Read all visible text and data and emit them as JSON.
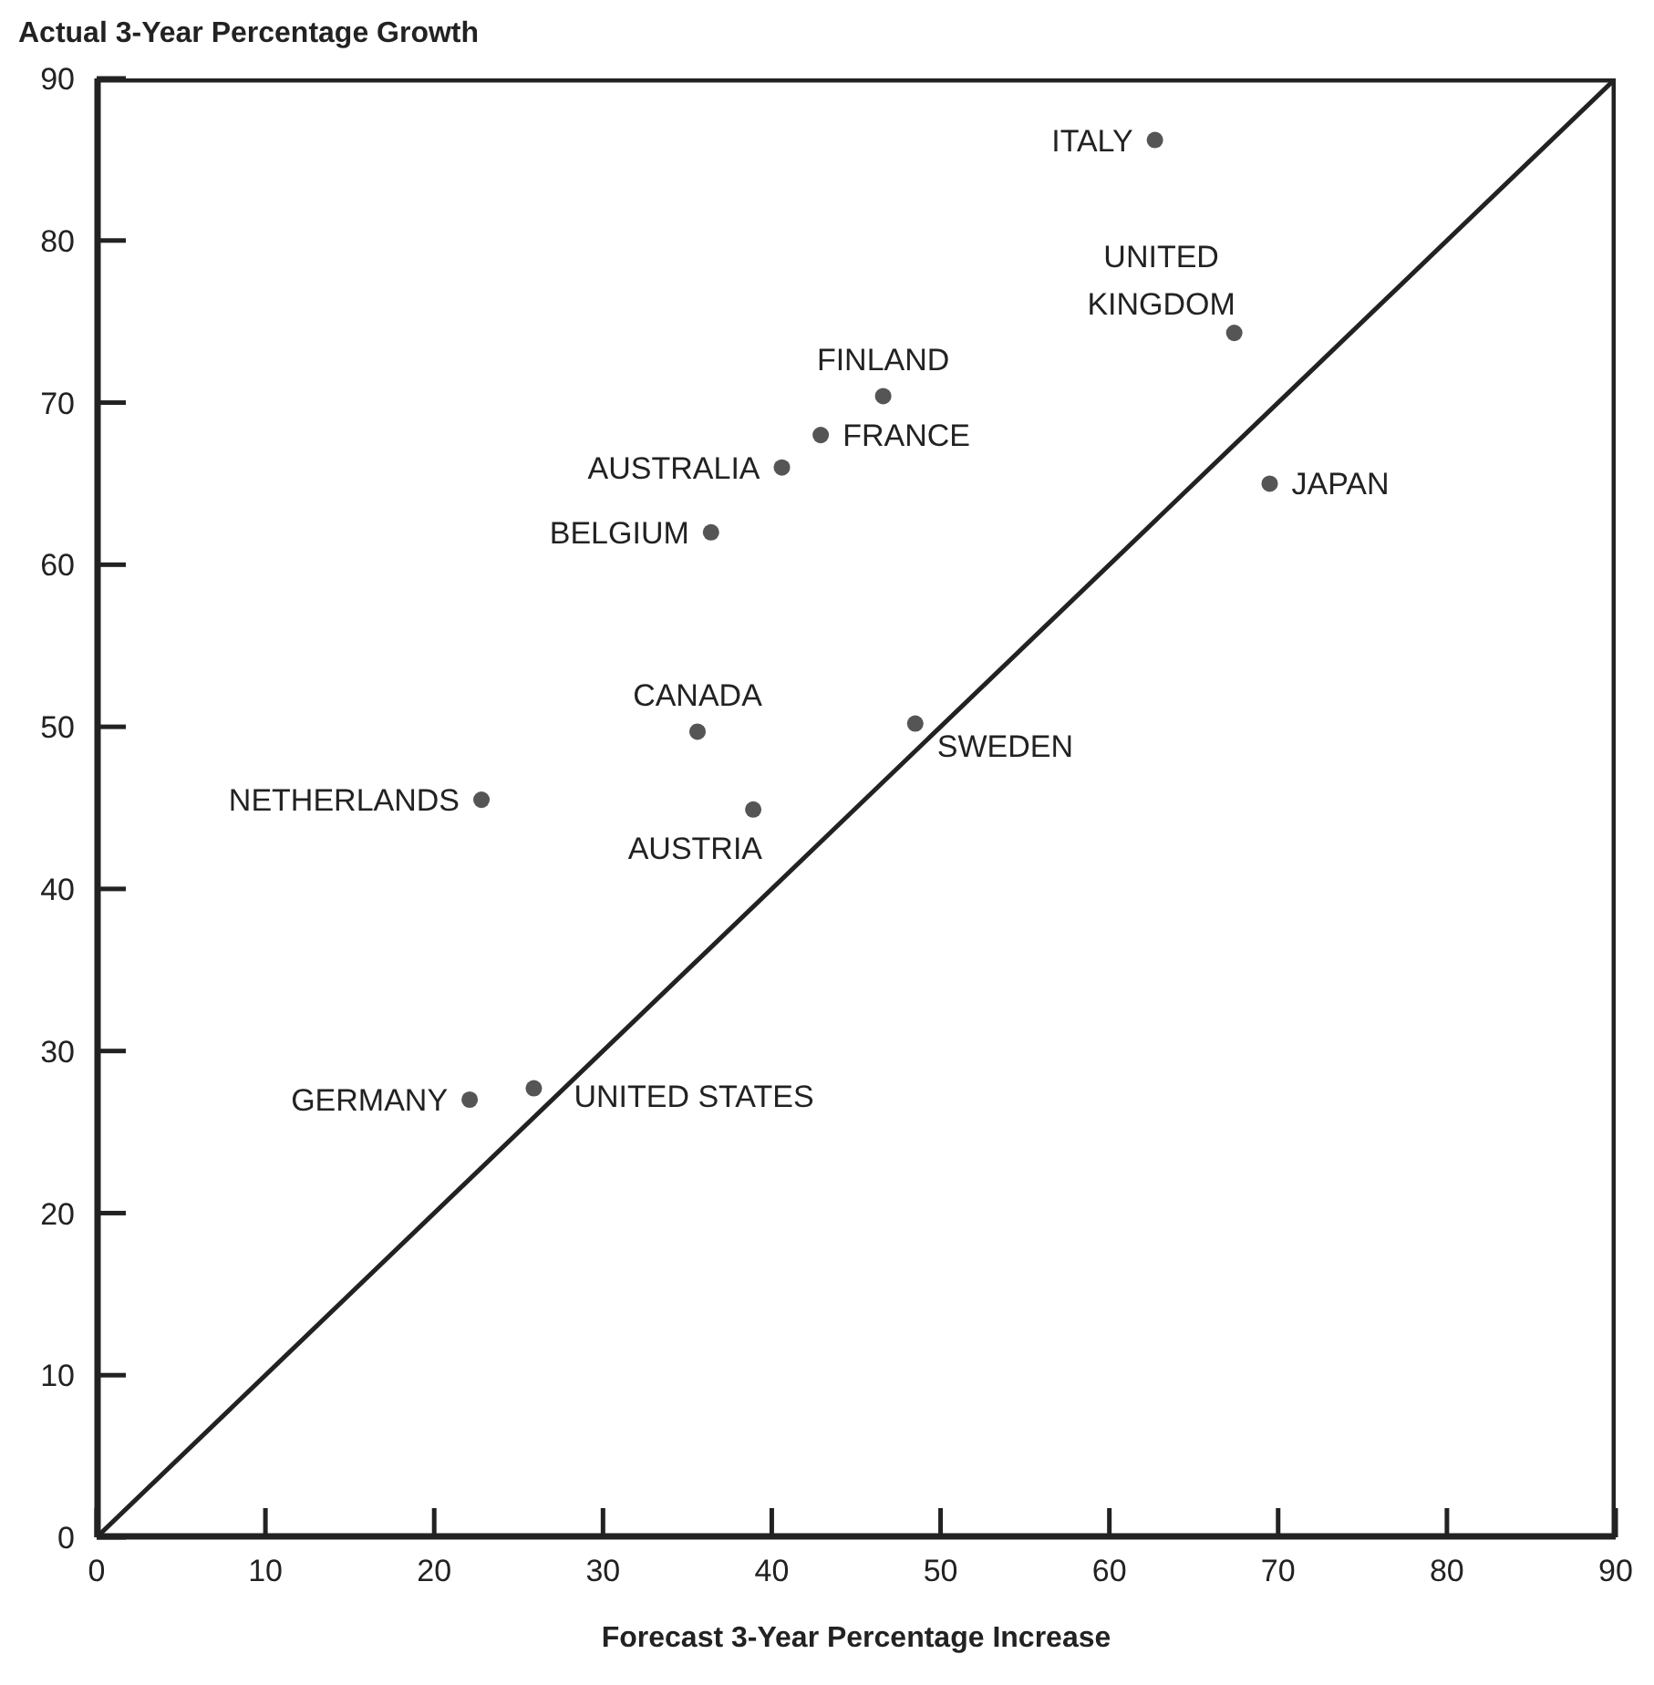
{
  "chart_data": {
    "type": "scatter",
    "xlabel": "Forecast 3-Year Percentage Increase",
    "ylabel": "Actual 3-Year Percentage Growth",
    "xlim": [
      0,
      90
    ],
    "ylim": [
      0,
      90
    ],
    "xticks": [
      0,
      10,
      20,
      30,
      40,
      50,
      60,
      70,
      80,
      90
    ],
    "yticks": [
      0,
      10,
      20,
      30,
      40,
      50,
      60,
      70,
      80,
      90
    ],
    "grid": false,
    "legend": false,
    "series": [
      {
        "marker": "circle",
        "color": "#555555",
        "x": [
          62.7,
          67.4,
          46.6,
          42.9,
          40.6,
          36.4,
          69.5,
          35.6,
          48.5,
          22.8,
          38.9,
          22.1,
          25.9
        ],
        "values": [
          86.2,
          74.3,
          70.4,
          68.0,
          66.0,
          62.0,
          65.0,
          49.7,
          50.2,
          45.5,
          44.9,
          27.0,
          27.7
        ]
      },
      {
        "type": "line",
        "marker": "none",
        "line_style": "solid",
        "color": "#222222",
        "x": [
          0,
          90
        ],
        "values": [
          0,
          90
        ]
      }
    ],
    "annotations": [
      {
        "text": "ITALY",
        "x": 62.7,
        "y": 86.2
      },
      {
        "text": "UNITED\nKINGDOM",
        "x": 67.4,
        "y": 74.3
      },
      {
        "text": "FINLAND",
        "x": 46.6,
        "y": 70.4
      },
      {
        "text": "FRANCE",
        "x": 42.9,
        "y": 68.0
      },
      {
        "text": "AUSTRALIA",
        "x": 40.6,
        "y": 66.0
      },
      {
        "text": "BELGIUM",
        "x": 36.4,
        "y": 62.0
      },
      {
        "text": "JAPAN",
        "x": 69.5,
        "y": 65.0
      },
      {
        "text": "CANADA",
        "x": 35.6,
        "y": 49.7
      },
      {
        "text": "SWEDEN",
        "x": 48.5,
        "y": 50.2
      },
      {
        "text": "NETHERLANDS",
        "x": 22.8,
        "y": 45.5
      },
      {
        "text": "AUSTRIA",
        "x": 38.9,
        "y": 44.9
      },
      {
        "text": "GERMANY",
        "x": 22.1,
        "y": 27.0
      },
      {
        "text": "UNITED STATES",
        "x": 25.9,
        "y": 27.7
      }
    ]
  }
}
